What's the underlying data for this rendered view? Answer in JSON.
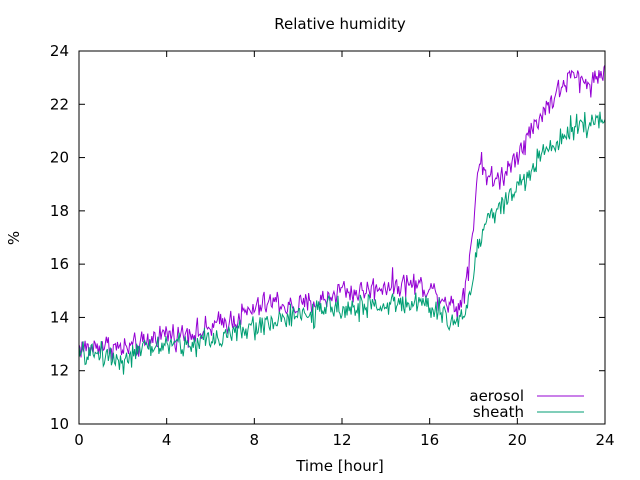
{
  "chart_data": {
    "type": "line",
    "title": "Relative humidity",
    "xlabel": "Time [hour]",
    "ylabel": "%",
    "xlim": [
      0,
      24
    ],
    "ylim": [
      10,
      24
    ],
    "x_ticks": [
      "0",
      "4",
      "8",
      "12",
      "16",
      "20",
      "24"
    ],
    "y_ticks": [
      "10",
      "12",
      "14",
      "16",
      "18",
      "20",
      "22",
      "24"
    ],
    "grid": false,
    "legend_position": "bottom-right",
    "x": [
      0,
      0.5,
      1,
      1.5,
      2,
      2.5,
      3,
      3.5,
      4,
      4.5,
      5,
      5.5,
      6,
      6.5,
      7,
      7.5,
      8,
      8.5,
      9,
      9.5,
      10,
      10.5,
      11,
      11.5,
      12,
      12.5,
      13,
      13.5,
      14,
      14.5,
      15,
      15.5,
      16,
      16.5,
      17,
      17.25,
      17.5,
      17.75,
      18,
      18.15,
      18.3,
      18.5,
      18.75,
      19,
      19.5,
      20,
      20.5,
      21,
      21.5,
      22,
      22.5,
      23,
      23.5,
      24
    ],
    "series": [
      {
        "name": "aerosol",
        "color": "#9400d3",
        "values": [
          12.9,
          12.8,
          13.0,
          12.9,
          12.8,
          12.9,
          13.0,
          13.3,
          13.4,
          13.3,
          13.5,
          13.4,
          13.6,
          13.8,
          13.9,
          14.1,
          14.3,
          14.5,
          14.6,
          14.4,
          14.4,
          14.5,
          14.6,
          14.8,
          15.1,
          14.9,
          15.0,
          15.1,
          15.2,
          15.2,
          15.3,
          15.2,
          15.1,
          14.8,
          14.5,
          14.3,
          14.8,
          15.8,
          17.5,
          19.2,
          19.9,
          19.6,
          19.2,
          19.1,
          19.5,
          20.2,
          20.8,
          21.5,
          22.1,
          22.6,
          23.1,
          22.8,
          22.9,
          23.3
        ]
      },
      {
        "name": "sheath",
        "color": "#009e73",
        "values": [
          12.6,
          12.6,
          12.7,
          12.5,
          12.4,
          12.6,
          12.8,
          12.9,
          13.0,
          13.0,
          12.9,
          13.1,
          13.2,
          13.3,
          13.4,
          13.5,
          13.6,
          13.8,
          13.9,
          14.0,
          14.0,
          14.1,
          14.2,
          14.3,
          14.5,
          14.3,
          14.4,
          14.4,
          14.5,
          14.5,
          14.6,
          14.5,
          14.4,
          14.1,
          13.9,
          13.8,
          14.1,
          14.6,
          15.5,
          16.4,
          17.1,
          17.5,
          17.8,
          18.0,
          18.4,
          18.9,
          19.4,
          19.9,
          20.4,
          20.8,
          21.2,
          21.3,
          21.1,
          21.6
        ]
      }
    ]
  }
}
